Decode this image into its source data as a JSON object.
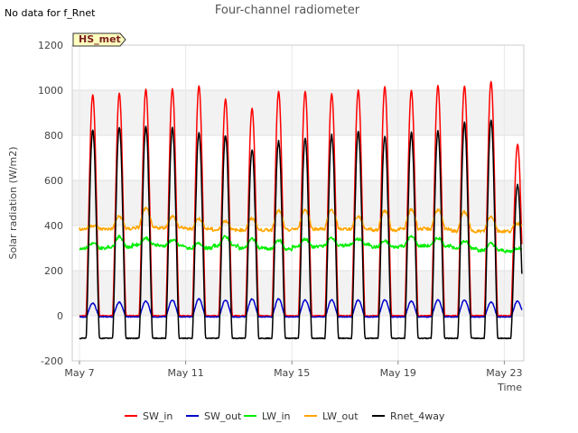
{
  "note": "No data for f_Rnet",
  "chart_data": {
    "type": "line",
    "title": "Four-channel radiometer",
    "xlabel": "Time",
    "ylabel": "Solar radiation (W/m2)",
    "badge": "HS_met",
    "ylim": [
      -200,
      1200
    ],
    "xlim": [
      0,
      17
    ],
    "yticks": [
      -200,
      0,
      200,
      400,
      600,
      800,
      1000,
      1200
    ],
    "xticks": [
      {
        "day": 0,
        "label": "May 7"
      },
      {
        "day": 4,
        "label": "May 11"
      },
      {
        "day": 8,
        "label": "May 15"
      },
      {
        "day": 12,
        "label": "May 19"
      },
      {
        "day": 16,
        "label": "May 23"
      }
    ],
    "grid": true,
    "legend_position": "bottom",
    "series": [
      {
        "name": "SW_in",
        "color": "#ff0000",
        "kind": "daily_peak",
        "base": 0,
        "peaks": [
          980,
          985,
          1005,
          1005,
          1020,
          960,
          920,
          995,
          995,
          985,
          1000,
          1015,
          1000,
          1020,
          1020,
          1040,
          760
        ]
      },
      {
        "name": "SW_out",
        "color": "#0000cc",
        "kind": "daily_peak",
        "base": -5,
        "peaks": [
          55,
          60,
          65,
          70,
          75,
          70,
          75,
          75,
          70,
          70,
          70,
          70,
          65,
          70,
          70,
          60,
          65
        ]
      },
      {
        "name": "LW_in",
        "color": "#00ee00",
        "kind": "daily_bump",
        "night": [
          300,
          305,
          315,
          310,
          300,
          310,
          300,
          295,
          305,
          310,
          315,
          305,
          310,
          310,
          300,
          290,
          285
        ],
        "day": [
          320,
          350,
          345,
          335,
          320,
          350,
          340,
          335,
          340,
          345,
          340,
          330,
          350,
          345,
          330,
          320,
          300
        ]
      },
      {
        "name": "LW_out",
        "color": "#ffa500",
        "kind": "daily_bump",
        "night": [
          385,
          385,
          390,
          390,
          385,
          380,
          380,
          380,
          385,
          385,
          385,
          380,
          385,
          385,
          375,
          375,
          375
        ],
        "day": [
          400,
          440,
          475,
          440,
          430,
          420,
          430,
          465,
          470,
          470,
          440,
          465,
          470,
          470,
          460,
          440,
          410
        ]
      },
      {
        "name": "Rnet_4way",
        "color": "#000000",
        "kind": "daily_peak",
        "base": -100,
        "peaks": [
          825,
          840,
          840,
          830,
          815,
          800,
          740,
          775,
          785,
          800,
          815,
          800,
          810,
          820,
          855,
          870,
          580
        ]
      }
    ]
  }
}
